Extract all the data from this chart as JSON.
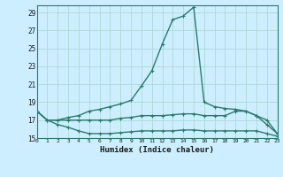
{
  "xlabel": "Humidex (Indice chaleur)",
  "bg_color": "#cceeff",
  "line_color": "#2d7a6b",
  "grid_color": "#b0d8d8",
  "xlim": [
    0,
    23
  ],
  "ylim": [
    15,
    29.8
  ],
  "xticks": [
    0,
    1,
    2,
    3,
    4,
    5,
    6,
    7,
    8,
    9,
    10,
    11,
    12,
    13,
    14,
    15,
    16,
    17,
    18,
    19,
    20,
    21,
    22,
    23
  ],
  "yticks": [
    15,
    17,
    19,
    21,
    23,
    25,
    27,
    29
  ],
  "line1_x": [
    0,
    1,
    2,
    3,
    4,
    5,
    6,
    7,
    8,
    9,
    10,
    11,
    12,
    13,
    14,
    15,
    16,
    17,
    18,
    19,
    20,
    21,
    22,
    23
  ],
  "line1_y": [
    18.0,
    17.0,
    17.0,
    17.3,
    17.5,
    18.0,
    18.2,
    18.5,
    18.8,
    19.2,
    20.8,
    22.5,
    25.5,
    28.2,
    28.6,
    29.6,
    19.0,
    18.5,
    18.3,
    18.2,
    18.0,
    17.5,
    16.5,
    15.5
  ],
  "line2_x": [
    0,
    1,
    2,
    3,
    4,
    5,
    6,
    7,
    8,
    9,
    10,
    11,
    12,
    13,
    14,
    15,
    16,
    17,
    18,
    19,
    20,
    21,
    22,
    23
  ],
  "line2_y": [
    18.0,
    17.0,
    17.0,
    17.0,
    17.0,
    17.0,
    17.0,
    17.0,
    17.2,
    17.3,
    17.5,
    17.5,
    17.5,
    17.6,
    17.7,
    17.7,
    17.5,
    17.5,
    17.5,
    18.0,
    18.0,
    17.5,
    17.0,
    15.5
  ],
  "line3_x": [
    0,
    1,
    2,
    3,
    4,
    5,
    6,
    7,
    8,
    9,
    10,
    11,
    12,
    13,
    14,
    15,
    16,
    17,
    18,
    19,
    20,
    21,
    22,
    23
  ],
  "line3_y": [
    18.0,
    17.0,
    16.5,
    16.2,
    15.8,
    15.5,
    15.5,
    15.5,
    15.6,
    15.7,
    15.8,
    15.8,
    15.8,
    15.8,
    15.9,
    15.9,
    15.8,
    15.8,
    15.8,
    15.8,
    15.8,
    15.8,
    15.5,
    15.2
  ],
  "marker": "+",
  "marker_size": 3.5,
  "linewidth": 1.0
}
